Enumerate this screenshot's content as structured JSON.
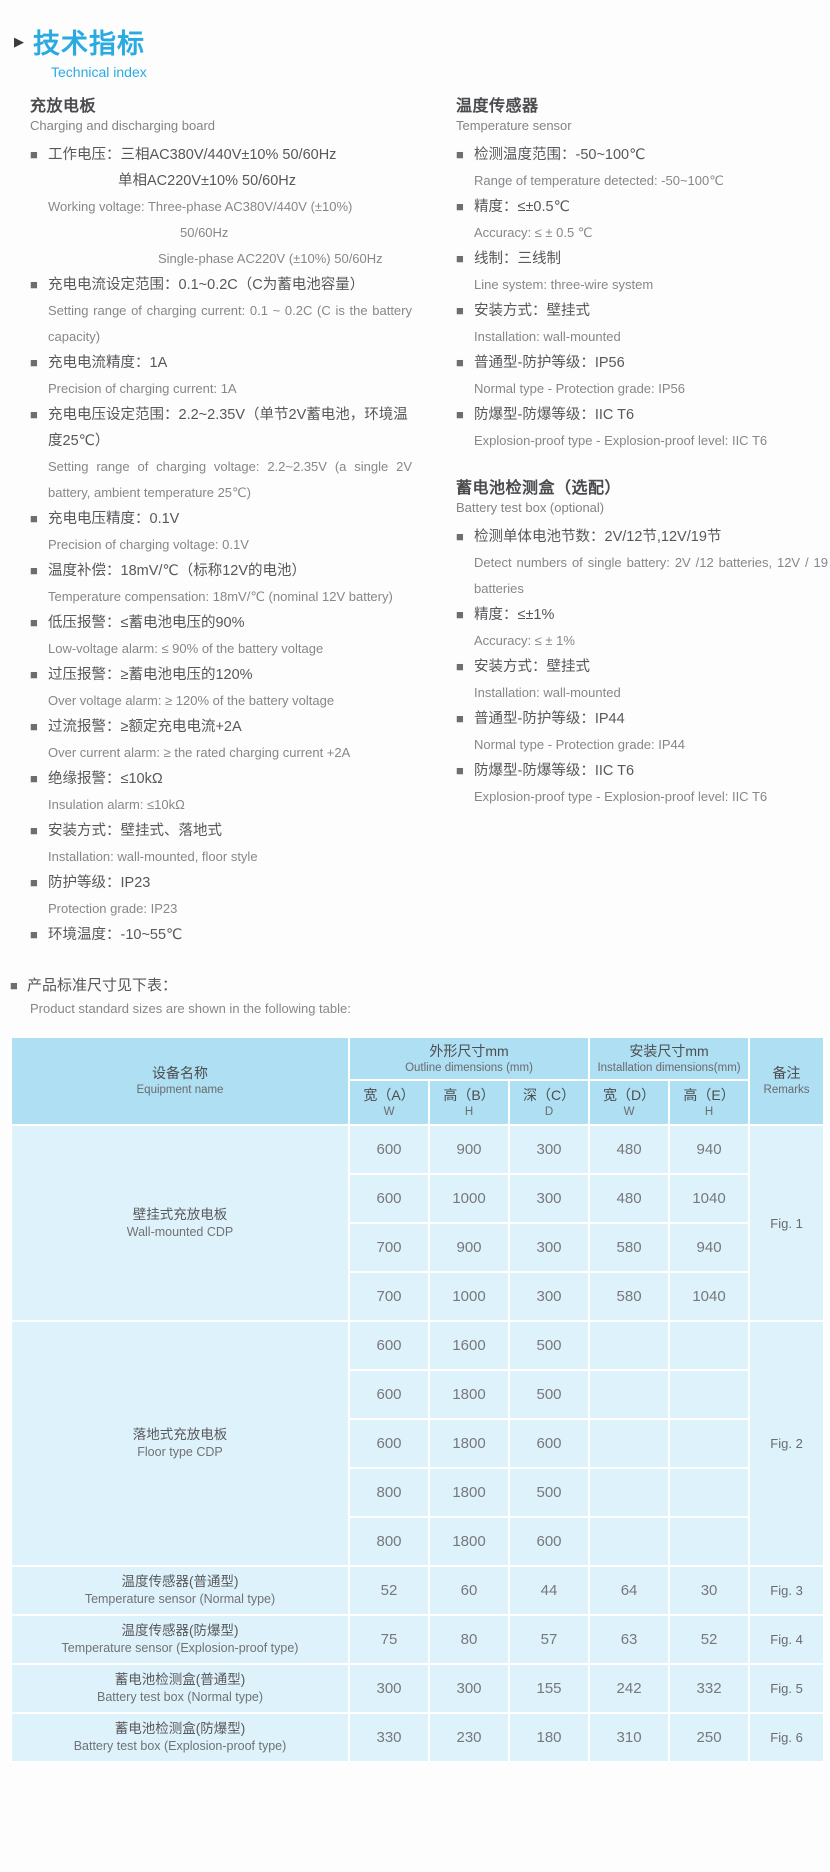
{
  "header": {
    "title_zh": "技术指标",
    "title_en": "Technical index"
  },
  "colors": {
    "accent": "#29abe2",
    "table_header_bg": "#aedff2",
    "table_body_bg": "#def2fb",
    "text_dark": "#57585a",
    "text_gray": "#85878a"
  },
  "sections": [
    {
      "column": "left",
      "heading_zh": "充放电板",
      "heading_en": "Charging and discharging board",
      "items": [
        {
          "lines": [
            {
              "t": "工作电压：三相AC380V/440V±10%  50/60Hz",
              "k": "zhb"
            },
            {
              "t": "单相AC220V±10%  50/60Hz",
              "k": "zhi"
            },
            {
              "t": "Working voltage: Three-phase AC380V/440V (±10%)",
              "k": "en"
            },
            {
              "t": "50/60Hz",
              "k": "en2"
            },
            {
              "t": "Single-phase AC220V (±10%) 50/60Hz",
              "k": "en3"
            }
          ]
        },
        {
          "lines": [
            {
              "t": "充电电流设定范围：0.1~0.2C（C为蓄电池容量）",
              "k": "zhb"
            },
            {
              "t": "Setting range of charging current: 0.1 ~ 0.2C (C is the battery capacity)",
              "k": "en"
            }
          ]
        },
        {
          "lines": [
            {
              "t": "充电电流精度：1A",
              "k": "zhb"
            },
            {
              "t": "Precision of charging current: 1A",
              "k": "en"
            }
          ]
        },
        {
          "lines": [
            {
              "t": "充电电压设定范围：2.2~2.35V（单节2V蓄电池，环境温度25℃）",
              "k": "zhb"
            },
            {
              "t": "Setting range of charging voltage: 2.2~2.35V (a single 2V battery, ambient temperature 25℃)",
              "k": "en"
            }
          ]
        },
        {
          "lines": [
            {
              "t": "充电电压精度：0.1V",
              "k": "zhb"
            },
            {
              "t": "Precision of charging voltage: 0.1V",
              "k": "en"
            }
          ]
        },
        {
          "lines": [
            {
              "t": "温度补偿：18mV/℃（标称12V的电池）",
              "k": "zhb"
            },
            {
              "t": "Temperature compensation: 18mV/℃ (nominal 12V battery)",
              "k": "en"
            }
          ]
        },
        {
          "lines": [
            {
              "t": "低压报警：≤蓄电池电压的90%",
              "k": "zhb"
            },
            {
              "t": "Low-voltage alarm: ≤ 90% of the battery voltage",
              "k": "en"
            }
          ]
        },
        {
          "lines": [
            {
              "t": "过压报警：≥蓄电池电压的120%",
              "k": "zhb"
            },
            {
              "t": "Over voltage alarm: ≥ 120% of the battery voltage",
              "k": "en"
            }
          ]
        },
        {
          "lines": [
            {
              "t": "过流报警：≥额定充电电流+2A",
              "k": "zhb"
            },
            {
              "t": "Over current alarm: ≥ the rated charging current +2A",
              "k": "en"
            }
          ]
        },
        {
          "lines": [
            {
              "t": "绝缘报警：≤10kΩ",
              "k": "zhb"
            },
            {
              "t": "Insulation alarm: ≤10kΩ",
              "k": "en"
            }
          ]
        },
        {
          "lines": [
            {
              "t": "安装方式：壁挂式、落地式",
              "k": "zhb"
            },
            {
              "t": "Installation: wall-mounted, floor style",
              "k": "en"
            }
          ]
        },
        {
          "lines": [
            {
              "t": "防护等级：IP23",
              "k": "zhb"
            },
            {
              "t": "Protection grade: IP23",
              "k": "en"
            }
          ]
        },
        {
          "lines": [
            {
              "t": "环境温度：-10~55℃",
              "k": "zhb"
            }
          ]
        }
      ]
    },
    {
      "column": "right",
      "heading_zh": "温度传感器",
      "heading_en": "Temperature sensor",
      "items": [
        {
          "lines": [
            {
              "t": "检测温度范围：-50~100℃",
              "k": "zhb"
            },
            {
              "t": "Range of temperature detected: -50~100℃",
              "k": "en"
            }
          ]
        },
        {
          "lines": [
            {
              "t": "精度：≤±0.5℃",
              "k": "zhb"
            },
            {
              "t": "Accuracy: ≤ ± 0.5 ℃",
              "k": "en"
            }
          ]
        },
        {
          "lines": [
            {
              "t": "线制：三线制",
              "k": "zhb"
            },
            {
              "t": "Line system: three-wire system",
              "k": "en"
            }
          ]
        },
        {
          "lines": [
            {
              "t": "安装方式：壁挂式",
              "k": "zhb"
            },
            {
              "t": "Installation: wall-mounted",
              "k": "en"
            }
          ]
        },
        {
          "lines": [
            {
              "t": "普通型-防护等级：IP56",
              "k": "zhb"
            },
            {
              "t": "Normal type - Protection grade: IP56",
              "k": "en"
            }
          ]
        },
        {
          "lines": [
            {
              "t": "防爆型-防爆等级：IIC T6",
              "k": "zhb"
            },
            {
              "t": "Explosion-proof type - Explosion-proof level: IIC T6",
              "k": "en"
            }
          ]
        }
      ]
    },
    {
      "column": "right",
      "heading_zh": "蓄电池检测盒（选配）",
      "heading_en": "Battery test box (optional)",
      "items": [
        {
          "lines": [
            {
              "t": "检测单体电池节数：2V/12节,12V/19节",
              "k": "zhb"
            },
            {
              "t": "Detect numbers of single battery: 2V /12 batteries, 12V / 19 batteries",
              "k": "en"
            }
          ]
        },
        {
          "lines": [
            {
              "t": "精度：≤±1%",
              "k": "zhb"
            },
            {
              "t": "Accuracy: ≤ ± 1%",
              "k": "en"
            }
          ]
        },
        {
          "lines": [
            {
              "t": "安装方式：壁挂式",
              "k": "zhb"
            },
            {
              "t": "Installation: wall-mounted",
              "k": "en"
            }
          ]
        },
        {
          "lines": [
            {
              "t": "普通型-防护等级：IP44",
              "k": "zhb"
            },
            {
              "t": "Normal type - Protection grade: IP44",
              "k": "en"
            }
          ]
        },
        {
          "lines": [
            {
              "t": "防爆型-防爆等级：IIC T6",
              "k": "zhb"
            },
            {
              "t": "Explosion-proof type - Explosion-proof level: IIC T6",
              "k": "en"
            }
          ]
        }
      ]
    }
  ],
  "note": {
    "zh": "产品标准尺寸见下表：",
    "en": "Product standard sizes are shown in the following table:"
  },
  "table": {
    "header": {
      "equipment_zh": "设备名称",
      "equipment_en": "Equipment name",
      "outline_zh": "外形尺寸mm",
      "outline_en": "Outline dimensions  (mm)",
      "installation_zh": "安装尺寸mm",
      "installation_en": "Installation dimensions(mm)",
      "remarks_zh": "备注",
      "remarks_en": "Remarks",
      "cols": [
        {
          "zh": "宽（A）",
          "en": "W"
        },
        {
          "zh": "高（B）",
          "en": "H"
        },
        {
          "zh": "深（C）",
          "en": "D"
        },
        {
          "zh": "宽（D）",
          "en": "W"
        },
        {
          "zh": "高（E）",
          "en": "H"
        }
      ]
    },
    "groups": [
      {
        "name_zh": "壁挂式充放电板",
        "name_en": "Wall-mounted CDP",
        "remark": "Fig. 1",
        "rows": [
          [
            "600",
            "900",
            "300",
            "480",
            "940"
          ],
          [
            "600",
            "1000",
            "300",
            "480",
            "1040"
          ],
          [
            "700",
            "900",
            "300",
            "580",
            "940"
          ],
          [
            "700",
            "1000",
            "300",
            "580",
            "1040"
          ]
        ]
      },
      {
        "name_zh": "落地式充放电板",
        "name_en": "Floor type CDP",
        "remark": "Fig. 2",
        "rows": [
          [
            "600",
            "1600",
            "500",
            "",
            ""
          ],
          [
            "600",
            "1800",
            "500",
            "",
            ""
          ],
          [
            "600",
            "1800",
            "600",
            "",
            ""
          ],
          [
            "800",
            "1800",
            "500",
            "",
            ""
          ],
          [
            "800",
            "1800",
            "600",
            "",
            ""
          ]
        ]
      },
      {
        "name_zh": "温度传感器(普通型)",
        "name_en": "Temperature sensor (Normal type)",
        "remark": "Fig. 3",
        "rows": [
          [
            "52",
            "60",
            "44",
            "64",
            "30"
          ]
        ]
      },
      {
        "name_zh": "温度传感器(防爆型)",
        "name_en": "Temperature sensor (Explosion-proof type)",
        "remark": "Fig. 4",
        "rows": [
          [
            "75",
            "80",
            "57",
            "63",
            "52"
          ]
        ]
      },
      {
        "name_zh": "蓄电池检测盒(普通型)",
        "name_en": "Battery test box (Normal type)",
        "remark": "Fig. 5",
        "rows": [
          [
            "300",
            "300",
            "155",
            "242",
            "332"
          ]
        ]
      },
      {
        "name_zh": "蓄电池检测盒(防爆型)",
        "name_en": "Battery test box (Explosion-proof type)",
        "remark": "Fig. 6",
        "rows": [
          [
            "330",
            "230",
            "180",
            "310",
            "250"
          ]
        ]
      }
    ]
  }
}
